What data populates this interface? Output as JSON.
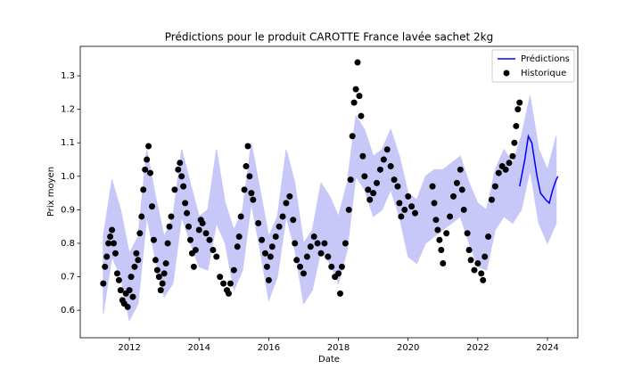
{
  "chart_data": {
    "type": "line",
    "title": "Prédictions pour le produit CAROTTE France lavée sachet 2kg",
    "xlabel": "Date",
    "ylabel": "Prix moyen",
    "xlim": [
      2010.59,
      2024.87
    ],
    "ylim": [
      0.518,
      1.388
    ],
    "xticks": [
      2012,
      2014,
      2016,
      2018,
      2020,
      2022,
      2024
    ],
    "yticks": [
      0.6,
      0.7,
      0.8,
      0.9,
      {
        "value": 1,
        "label": "1.0"
      },
      1.1,
      1.2,
      1.3
    ],
    "legend": "upper right",
    "band": {
      "color": "#c8c8f8",
      "x": [
        2011.25,
        2011.5,
        2011.75,
        2012.0,
        2012.25,
        2012.5,
        2012.75,
        2013.0,
        2013.25,
        2013.5,
        2013.75,
        2014.0,
        2014.25,
        2014.5,
        2014.75,
        2015.0,
        2015.25,
        2015.5,
        2015.75,
        2016.0,
        2016.25,
        2016.5,
        2016.75,
        2017.0,
        2017.25,
        2017.5,
        2017.75,
        2018.0,
        2018.25,
        2018.5,
        2018.75,
        2019.0,
        2019.25,
        2019.5,
        2019.75,
        2020.0,
        2020.25,
        2020.5,
        2020.75,
        2021.0,
        2021.25,
        2021.5,
        2021.75,
        2022.0,
        2022.25,
        2022.5,
        2022.75,
        2023.0,
        2023.25,
        2023.5,
        2023.75,
        2024.0,
        2024.25
      ],
      "lower": [
        0.59,
        0.76,
        0.7,
        0.57,
        0.62,
        0.88,
        0.75,
        0.64,
        0.68,
        0.88,
        0.8,
        0.73,
        0.72,
        0.86,
        0.8,
        0.66,
        0.72,
        0.92,
        0.78,
        0.63,
        0.7,
        0.88,
        0.78,
        0.62,
        0.66,
        0.78,
        0.74,
        0.68,
        0.78,
        1.0,
        0.96,
        0.88,
        0.9,
        0.96,
        0.88,
        0.76,
        0.74,
        0.8,
        0.82,
        0.84,
        0.86,
        0.88,
        0.8,
        0.73,
        0.72,
        0.84,
        0.88,
        0.86,
        0.9,
        1.02,
        0.86,
        0.8,
        0.86
      ],
      "upper": [
        0.82,
        0.99,
        0.9,
        0.77,
        0.82,
        1.08,
        0.94,
        0.82,
        0.88,
        1.08,
        0.98,
        0.88,
        0.9,
        1.08,
        0.92,
        0.84,
        0.9,
        1.1,
        0.96,
        0.82,
        0.88,
        1.08,
        0.98,
        0.8,
        0.84,
        0.98,
        0.94,
        0.88,
        0.98,
        1.18,
        1.14,
        1.06,
        1.08,
        1.14,
        1.06,
        0.95,
        0.93,
        1.0,
        1.02,
        1.02,
        1.04,
        1.06,
        0.98,
        0.92,
        0.9,
        1.02,
        1.08,
        1.04,
        1.12,
        1.24,
        1.08,
        1.02,
        1.12
      ]
    },
    "series": [
      {
        "name": "Prédictions",
        "type": "line",
        "color": "#0000ff",
        "x": [
          2023.2,
          2023.35,
          2023.45,
          2023.55,
          2023.7,
          2023.8,
          2023.95,
          2024.05,
          2024.15,
          2024.25,
          2024.3
        ],
        "values": [
          0.97,
          1.05,
          1.12,
          1.1,
          1.0,
          0.95,
          0.93,
          0.92,
          0.96,
          0.99,
          1.0
        ]
      },
      {
        "name": "Historique",
        "type": "scatter",
        "color": "#000000",
        "x": [
          2011.25,
          2011.3,
          2011.35,
          2011.4,
          2011.45,
          2011.5,
          2011.55,
          2011.6,
          2011.65,
          2011.7,
          2011.75,
          2011.8,
          2011.85,
          2011.9,
          2011.95,
          2012.0,
          2012.05,
          2012.1,
          2012.15,
          2012.2,
          2012.25,
          2012.3,
          2012.35,
          2012.4,
          2012.45,
          2012.5,
          2012.55,
          2012.6,
          2012.65,
          2012.7,
          2012.75,
          2012.8,
          2012.85,
          2012.9,
          2012.95,
          2013.0,
          2013.05,
          2013.1,
          2013.15,
          2013.2,
          2013.3,
          2013.4,
          2013.45,
          2013.5,
          2013.55,
          2013.6,
          2013.65,
          2013.7,
          2013.75,
          2013.8,
          2013.85,
          2013.9,
          2014.0,
          2014.05,
          2014.1,
          2014.2,
          2014.3,
          2014.4,
          2014.5,
          2014.6,
          2014.7,
          2014.8,
          2014.85,
          2014.9,
          2015.0,
          2015.1,
          2015.15,
          2015.2,
          2015.3,
          2015.35,
          2015.4,
          2015.45,
          2015.5,
          2015.55,
          2015.7,
          2015.8,
          2015.9,
          2015.95,
          2016.0,
          2016.05,
          2016.1,
          2016.2,
          2016.3,
          2016.4,
          2016.5,
          2016.6,
          2016.7,
          2016.75,
          2016.8,
          2016.9,
          2017.0,
          2017.1,
          2017.2,
          2017.3,
          2017.4,
          2017.5,
          2017.6,
          2017.7,
          2017.8,
          2017.9,
          2018.0,
          2018.05,
          2018.1,
          2018.2,
          2018.3,
          2018.35,
          2018.4,
          2018.45,
          2018.5,
          2018.55,
          2018.6,
          2018.65,
          2018.7,
          2018.75,
          2018.85,
          2018.9,
          2019.0,
          2019.1,
          2019.2,
          2019.3,
          2019.4,
          2019.5,
          2019.6,
          2019.7,
          2019.75,
          2019.8,
          2019.9,
          2020.0,
          2020.1,
          2020.2,
          2020.7,
          2020.75,
          2020.8,
          2020.85,
          2020.9,
          2020.95,
          2021.0,
          2021.1,
          2021.2,
          2021.3,
          2021.4,
          2021.5,
          2021.55,
          2021.6,
          2021.7,
          2021.75,
          2021.8,
          2021.9,
          2022.0,
          2022.1,
          2022.15,
          2022.2,
          2022.3,
          2022.4,
          2022.5,
          2022.6,
          2022.7,
          2022.8,
          2022.9,
          2023.0,
          2023.05,
          2023.1,
          2023.15,
          2023.2
        ],
        "values": [
          0.68,
          0.73,
          0.76,
          0.8,
          0.82,
          0.84,
          0.8,
          0.77,
          0.71,
          0.69,
          0.66,
          0.63,
          0.62,
          0.65,
          0.61,
          0.66,
          0.7,
          0.64,
          0.73,
          0.77,
          0.75,
          0.83,
          0.88,
          0.96,
          1.02,
          1.05,
          1.09,
          1.01,
          0.91,
          0.81,
          0.75,
          0.72,
          0.7,
          0.66,
          0.68,
          0.71,
          0.74,
          0.8,
          0.85,
          0.88,
          0.96,
          1.02,
          1.04,
          1.0,
          0.97,
          0.92,
          0.89,
          0.85,
          0.81,
          0.77,
          0.73,
          0.78,
          0.84,
          0.87,
          0.86,
          0.83,
          0.81,
          0.78,
          0.76,
          0.7,
          0.68,
          0.66,
          0.65,
          0.68,
          0.72,
          0.79,
          0.82,
          0.88,
          0.96,
          1.03,
          1.09,
          1.0,
          0.95,
          0.93,
          0.86,
          0.81,
          0.77,
          0.73,
          0.69,
          0.76,
          0.79,
          0.82,
          0.85,
          0.88,
          0.92,
          0.94,
          0.87,
          0.8,
          0.75,
          0.73,
          0.71,
          0.76,
          0.79,
          0.82,
          0.8,
          0.77,
          0.8,
          0.76,
          0.73,
          0.7,
          0.71,
          0.65,
          0.73,
          0.8,
          0.9,
          0.99,
          1.12,
          1.22,
          1.26,
          1.34,
          1.24,
          1.18,
          1.06,
          1.0,
          0.96,
          0.93,
          0.95,
          0.98,
          1.02,
          1.05,
          1.08,
          1.03,
          0.99,
          0.97,
          0.92,
          0.88,
          0.9,
          0.94,
          0.91,
          0.89,
          0.97,
          0.92,
          0.87,
          0.84,
          0.81,
          0.78,
          0.74,
          0.83,
          0.88,
          0.94,
          0.98,
          1.02,
          0.96,
          0.9,
          0.83,
          0.78,
          0.75,
          0.72,
          0.74,
          0.71,
          0.69,
          0.76,
          0.82,
          0.93,
          0.97,
          1.01,
          1.03,
          1.02,
          1.04,
          1.06,
          1.1,
          1.15,
          1.2,
          1.22
        ]
      }
    ]
  }
}
